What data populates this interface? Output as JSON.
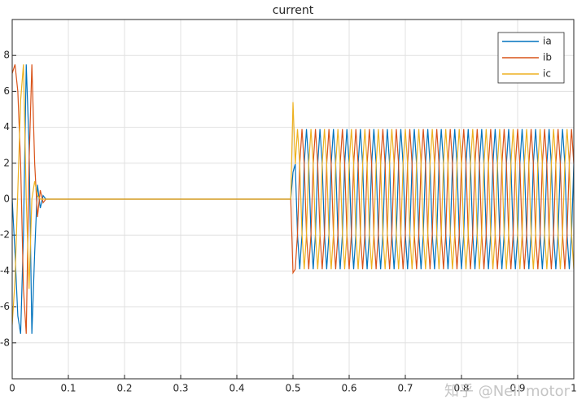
{
  "chart_data": {
    "type": "line",
    "title": "current",
    "x": [
      0,
      0.005,
      0.01,
      0.015,
      0.02,
      0.025,
      0.03,
      0.035,
      0.04,
      0.045,
      0.05,
      0.055,
      0.06,
      0.1,
      0.2,
      0.3,
      0.4,
      0.496,
      0.5,
      0.504,
      0.508,
      0.512,
      0.516,
      0.52,
      0.524,
      0.528,
      0.532,
      0.536,
      0.54,
      0.544,
      0.548,
      0.552,
      0.556,
      0.56,
      0.564,
      0.568,
      0.572,
      0.576,
      0.58,
      0.584,
      0.588,
      0.592,
      0.596,
      0.6,
      0.604,
      0.608,
      0.612,
      0.616,
      0.62,
      0.624,
      0.628,
      0.632,
      0.636,
      0.64,
      0.644,
      0.648,
      0.652,
      0.656,
      0.66,
      0.664,
      0.668,
      0.672,
      0.676,
      0.68,
      0.684,
      0.688,
      0.692,
      0.696,
      0.7,
      0.704,
      0.708,
      0.712,
      0.716,
      0.72,
      0.724,
      0.728,
      0.732,
      0.736,
      0.74,
      0.744,
      0.748,
      0.752,
      0.756,
      0.76,
      0.764,
      0.768,
      0.772,
      0.776,
      0.78,
      0.784,
      0.788,
      0.792,
      0.796,
      0.8,
      0.804,
      0.808,
      0.812,
      0.816,
      0.82,
      0.824,
      0.828,
      0.832,
      0.836,
      0.84,
      0.844,
      0.848,
      0.852,
      0.856,
      0.86,
      0.864,
      0.868,
      0.872,
      0.876,
      0.88,
      0.884,
      0.888,
      0.892,
      0.896,
      0.9,
      0.904,
      0.908,
      0.912,
      0.916,
      0.92,
      0.924,
      0.928,
      0.932,
      0.936,
      0.94,
      0.944,
      0.948,
      0.952,
      0.956,
      0.96,
      0.964,
      0.968,
      0.972,
      0.976,
      0.98,
      0.984,
      0.988,
      0.992,
      0.996,
      1
    ],
    "series": [
      {
        "name": "ia",
        "color": "#0072BD",
        "values": [
          0,
          -3,
          -6.5,
          -7.5,
          -2,
          7.5,
          3,
          -7.5,
          -3,
          0.8,
          -0.5,
          0.2,
          0,
          0,
          0,
          0,
          0,
          0,
          1.5,
          1.95,
          -1.95,
          -3.9,
          -1.95,
          1.95,
          3.9,
          1.95,
          -1.95,
          -3.9,
          -1.95,
          1.95,
          3.9,
          1.95,
          -1.95,
          -3.9,
          -1.95,
          1.95,
          3.9,
          1.95,
          -1.95,
          -3.9,
          -1.95,
          1.95,
          3.9,
          1.95,
          -1.95,
          -3.9,
          -1.95,
          1.95,
          3.9,
          1.95,
          -1.95,
          -3.9,
          -1.95,
          1.95,
          3.9,
          1.95,
          -1.95,
          -3.9,
          -1.95,
          1.95,
          3.9,
          1.95,
          -1.95,
          -3.9,
          -1.95,
          1.95,
          3.9,
          1.95,
          -1.95,
          -3.9,
          -1.95,
          1.95,
          3.9,
          1.95,
          -1.95,
          -3.9,
          -1.95,
          1.95,
          3.9,
          1.95,
          -1.95,
          -3.9,
          -1.95,
          1.95,
          3.9,
          1.95,
          -1.95,
          -3.9,
          -1.95,
          1.95,
          3.9,
          1.95,
          -1.95,
          -3.9,
          -1.95,
          1.95,
          3.9,
          1.95,
          -1.95,
          -3.9,
          -1.95,
          1.95,
          3.9,
          1.95,
          -1.95,
          -3.9,
          -1.95,
          1.95,
          3.9,
          1.95,
          -1.95,
          -3.9,
          -1.95,
          1.95,
          3.9,
          1.95,
          -1.95,
          -3.9,
          -1.95,
          1.95,
          3.9,
          1.95,
          -1.95,
          -3.9,
          -1.95,
          1.95,
          3.9,
          1.95,
          -1.95,
          -3.9,
          -1.95,
          1.95,
          3.9,
          1.95,
          -1.95,
          -3.9,
          -1.95,
          1.95,
          3.9,
          1.95,
          -1.95,
          -3.9,
          -1.95,
          1.95
        ]
      },
      {
        "name": "ib",
        "color": "#D95319",
        "values": [
          7,
          7.5,
          6,
          2,
          -5,
          -7.5,
          2,
          7.5,
          2,
          -1,
          0.5,
          -0.2,
          0,
          0,
          0,
          0,
          0,
          0,
          -4.1,
          -3.9,
          -1.95,
          1.95,
          3.9,
          1.95,
          -1.95,
          -3.9,
          -1.95,
          1.95,
          3.9,
          1.95,
          -1.95,
          -3.9,
          -1.95,
          1.95,
          3.9,
          1.95,
          -1.95,
          -3.9,
          -1.95,
          1.95,
          3.9,
          1.95,
          -1.95,
          -3.9,
          -1.95,
          1.95,
          3.9,
          1.95,
          -1.95,
          -3.9,
          -1.95,
          1.95,
          3.9,
          1.95,
          -1.95,
          -3.9,
          -1.95,
          1.95,
          3.9,
          1.95,
          -1.95,
          -3.9,
          -1.95,
          1.95,
          3.9,
          1.95,
          -1.95,
          -3.9,
          -1.95,
          1.95,
          3.9,
          1.95,
          -1.95,
          -3.9,
          -1.95,
          1.95,
          3.9,
          1.95,
          -1.95,
          -3.9,
          -1.95,
          1.95,
          3.9,
          1.95,
          -1.95,
          -3.9,
          -1.95,
          1.95,
          3.9,
          1.95,
          -1.95,
          -3.9,
          -1.95,
          1.95,
          3.9,
          1.95,
          -1.95,
          -3.9,
          -1.95,
          1.95,
          3.9,
          1.95,
          -1.95,
          -3.9,
          -1.95,
          1.95,
          3.9,
          1.95,
          -1.95,
          -3.9,
          -1.95,
          1.95,
          3.9,
          1.95,
          -1.95,
          -3.9,
          -1.95,
          1.95,
          3.9,
          1.95,
          -1.95,
          -3.9,
          -1.95,
          1.95,
          3.9,
          1.95,
          -1.95,
          -3.9,
          -1.95,
          1.95,
          3.9,
          1.95,
          -1.95,
          -3.9,
          -1.95,
          1.95,
          3.9,
          1.95,
          -1.95,
          -3.9,
          -1.95,
          1.95,
          3.9,
          1.95
        ]
      },
      {
        "name": "ic",
        "color": "#EDB120",
        "values": [
          -7,
          -4.5,
          0.5,
          5.5,
          7.5,
          0,
          -5,
          0,
          1,
          0.2,
          0,
          0,
          0,
          0,
          0,
          0,
          0,
          0,
          5.4,
          1.95,
          3.9,
          1.95,
          -1.95,
          -3.9,
          -1.95,
          1.95,
          3.9,
          1.95,
          -1.95,
          -3.9,
          -1.95,
          1.95,
          3.9,
          1.95,
          -1.95,
          -3.9,
          -1.95,
          1.95,
          3.9,
          1.95,
          -1.95,
          -3.9,
          -1.95,
          1.95,
          3.9,
          1.95,
          -1.95,
          -3.9,
          -1.95,
          1.95,
          3.9,
          1.95,
          -1.95,
          -3.9,
          -1.95,
          1.95,
          3.9,
          1.95,
          -1.95,
          -3.9,
          -1.95,
          1.95,
          3.9,
          1.95,
          -1.95,
          -3.9,
          -1.95,
          1.95,
          3.9,
          1.95,
          -1.95,
          -3.9,
          -1.95,
          1.95,
          3.9,
          1.95,
          -1.95,
          -3.9,
          -1.95,
          1.95,
          3.9,
          1.95,
          -1.95,
          -3.9,
          -1.95,
          1.95,
          3.9,
          1.95,
          -1.95,
          -3.9,
          -1.95,
          1.95,
          3.9,
          1.95,
          -1.95,
          -3.9,
          -1.95,
          1.95,
          3.9,
          1.95,
          -1.95,
          -3.9,
          -1.95,
          1.95,
          3.9,
          1.95,
          -1.95,
          -3.9,
          -1.95,
          1.95,
          3.9,
          1.95,
          -1.95,
          -3.9,
          -1.95,
          1.95,
          3.9,
          1.95,
          -1.95,
          -3.9,
          -1.95,
          1.95,
          3.9,
          1.95,
          -1.95,
          -3.9,
          -1.95,
          1.95,
          3.9,
          1.95,
          -1.95,
          -3.9,
          -1.95,
          1.95,
          3.9,
          1.95,
          -1.95,
          -3.9,
          -1.95,
          1.95,
          3.9,
          1.95,
          -1.95,
          -3.9
        ]
      }
    ],
    "xlim": [
      0,
      1
    ],
    "xticks": [
      0,
      0.1,
      0.2,
      0.3,
      0.4,
      0.5,
      0.6,
      0.7,
      0.8,
      0.9,
      1
    ],
    "ylim": [
      -10,
      10
    ],
    "yticks": [
      -8,
      -6,
      -4,
      -2,
      0,
      2,
      4,
      6,
      8
    ],
    "grid": true,
    "legend": "top-right",
    "watermark": "知乎 @Neil motor"
  }
}
